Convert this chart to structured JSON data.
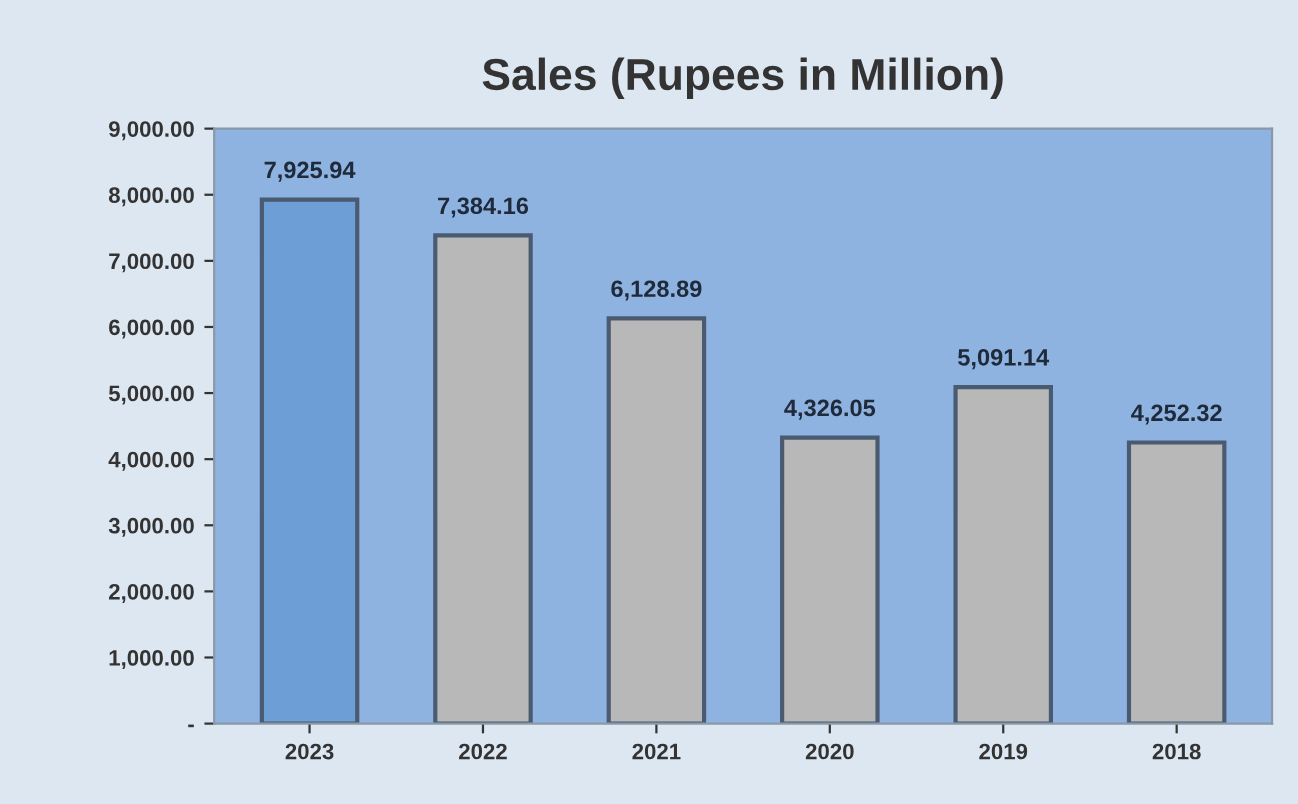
{
  "chart_data": {
    "type": "bar",
    "title": "Sales (Rupees in Million)",
    "categories": [
      "2023",
      "2022",
      "2021",
      "2020",
      "2019",
      "2018"
    ],
    "values": [
      7925.94,
      7384.16,
      6128.89,
      4326.05,
      5091.14,
      4252.32
    ],
    "colors": [
      "#6d9ed6",
      "#b8b8b8",
      "#b8b8b8",
      "#b8b8b8",
      "#b8b8b8",
      "#b8b8b8"
    ],
    "value_labels": [
      "7,925.94",
      "7,384.16",
      "6,128.89",
      "4,326.05",
      "5,091.14",
      "4,252.32"
    ],
    "ylim": [
      0,
      9000
    ],
    "yticks": [
      {
        "value": 0,
        "label": "-"
      },
      {
        "value": 1000,
        "label": "1,000.00"
      },
      {
        "value": 2000,
        "label": "2,000.00"
      },
      {
        "value": 3000,
        "label": "3,000.00"
      },
      {
        "value": 4000,
        "label": "4,000.00"
      },
      {
        "value": 5000,
        "label": "5,000.00"
      },
      {
        "value": 6000,
        "label": "6,000.00"
      },
      {
        "value": 7000,
        "label": "7,000.00"
      },
      {
        "value": 8000,
        "label": "8,000.00"
      },
      {
        "value": 9000,
        "label": "9,000.00"
      }
    ]
  }
}
